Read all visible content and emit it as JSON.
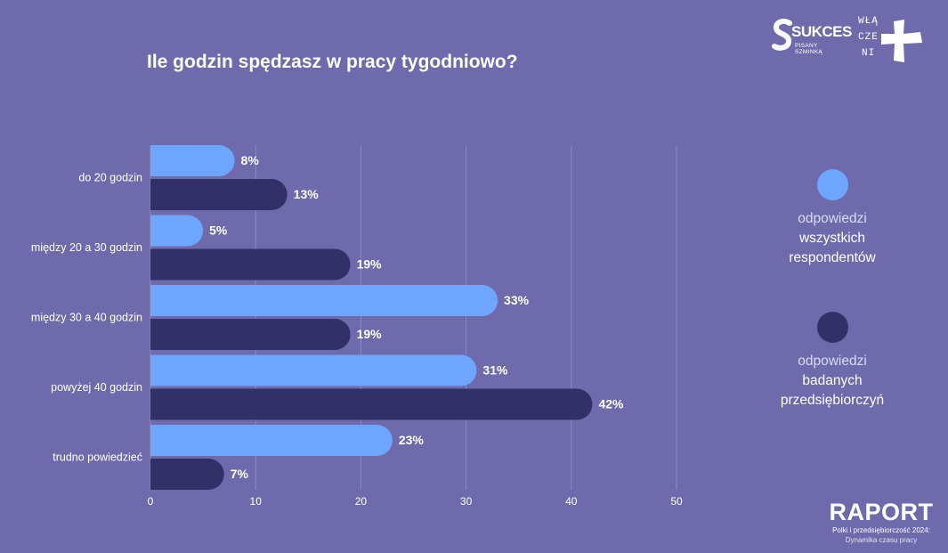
{
  "title": "Ile godzin spędzasz w pracy tygodniowo?",
  "colors": {
    "background": "#6e6aab",
    "series_all": "#6ea6ff",
    "series_entrepreneurs": "#333069",
    "grid": "#8d89c2"
  },
  "logos": {
    "sukces_word": "SUKCES",
    "sukces_sub": "PISANY SZMINKĄ",
    "wlaczeni_lines": [
      "WŁĄ",
      "CZE",
      "NI"
    ]
  },
  "legend": {
    "all": {
      "line1": "odpowiedzi",
      "line2": "wszystkich",
      "line3": "respondentów"
    },
    "entrepreneurs": {
      "line1": "odpowiedzi",
      "line2": "badanych",
      "line3": "przedsiębiorczyń"
    }
  },
  "footer": {
    "title": "RAPORT",
    "line1": "Polki i przedsiębiorczość 2024:",
    "line2": "Dynamika czasu pracy"
  },
  "chart_data": {
    "type": "bar",
    "orientation": "horizontal",
    "categories": [
      "do 20 godzin",
      "między 20 a 30 godzin",
      "między 30 a 40 godzin",
      "powyżej 40 godzin",
      "trudno powiedzieć"
    ],
    "series": [
      {
        "name": "odpowiedzi wszystkich respondentów",
        "values": [
          8,
          5,
          33,
          31,
          23
        ],
        "labels": [
          "8%",
          "5%",
          "33%",
          "31%",
          "23%"
        ]
      },
      {
        "name": "odpowiedzi badanych przedsiębiorczyń",
        "values": [
          13,
          19,
          19,
          42,
          7
        ],
        "labels": [
          "13%",
          "19%",
          "19%",
          "42%",
          "7%"
        ]
      }
    ],
    "xlim": [
      0,
      50
    ],
    "xticks": [
      "0",
      "10",
      "20",
      "30",
      "40",
      "50"
    ],
    "grid": true,
    "legend_position": "right"
  }
}
